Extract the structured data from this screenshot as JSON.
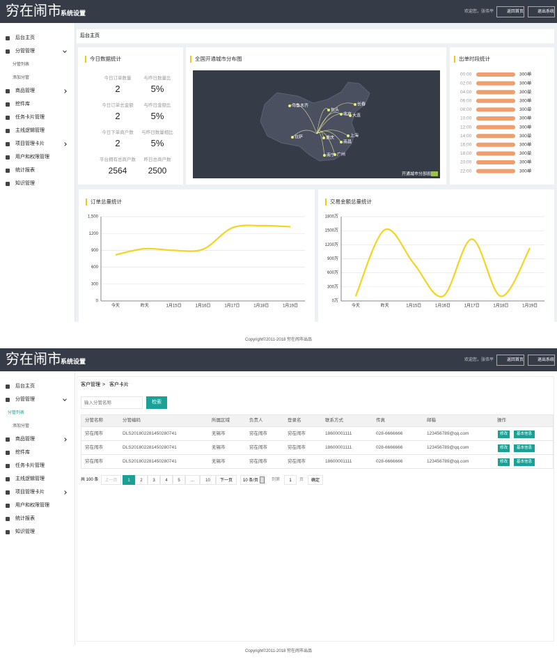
{
  "header": {
    "logo": "穷在闹市",
    "subtitle": "系统设置",
    "welcome": "欢迎您，张伟平",
    "home_button": "返回首页",
    "exit_button": "退出系统"
  },
  "menu": [
    {
      "label": "后台主页"
    },
    {
      "label": "分管管理",
      "children": [
        "分管列表",
        "添加分管"
      ]
    },
    {
      "label": "商品管理"
    },
    {
      "label": "挖件库"
    },
    {
      "label": "任务卡片管理"
    },
    {
      "label": "主线逻辑管理"
    },
    {
      "label": "项目管理卡片"
    },
    {
      "label": "用户和权限管理"
    },
    {
      "label": "统计报表"
    },
    {
      "label": "知识管理"
    }
  ],
  "dashboard": {
    "breadcrumb": "后台主页",
    "stats": {
      "title": "今日数据统计",
      "items": [
        {
          "label": "今日订单数量",
          "value": "2"
        },
        {
          "label": "与昨日数量比",
          "value": "5%"
        },
        {
          "label": "今日订单总金额",
          "value": "2"
        },
        {
          "label": "与昨日金额比",
          "value": "5%"
        },
        {
          "label": "今日下单商户数",
          "value": "2"
        },
        {
          "label": "与昨日数量相比",
          "value": "5%"
        },
        {
          "label": "平台拥有总商户数",
          "value": "2564"
        },
        {
          "label": "昨日总商户数",
          "value": "2500"
        }
      ]
    },
    "map": {
      "title": "全国开通城市分布图",
      "cities": [
        "乌鲁木齐",
        "包头",
        "北京",
        "长春",
        "大连",
        "拉萨",
        "重庆",
        "上海",
        "南昌",
        "南宁",
        "广州"
      ],
      "legend": "开通城市分部图"
    },
    "hours": {
      "type": "bar",
      "title": "出单时段统计",
      "categories": [
        "00:00",
        "02:00",
        "04:00",
        "06:00",
        "08:00",
        "10:00",
        "12:00",
        "14:00",
        "16:00",
        "18:00",
        "20:00",
        "22:00"
      ],
      "values": [
        300,
        300,
        300,
        300,
        300,
        300,
        300,
        300,
        300,
        300,
        300,
        300
      ],
      "value_labels": [
        "300单",
        "300单",
        "300单",
        "300单",
        "300单",
        "300单",
        "300单",
        "300单",
        "300单",
        "300单",
        "300单",
        "300单"
      ]
    },
    "charts": [
      {
        "type": "line",
        "title": "订单总量统计",
        "categories": [
          "今天",
          "昨天",
          "1月15日",
          "1月16日",
          "1月17日",
          "1月18日",
          "1月19日"
        ],
        "values": [
          820,
          930,
          900,
          920,
          1300,
          1340,
          1320
        ],
        "color": "#f5d41e",
        "ylim": [
          0,
          1500
        ],
        "yticks": [
          0,
          300,
          600,
          900,
          1200,
          {
            "value": 1500,
            "label": "1,500"
          }
        ],
        "grid": true
      },
      {
        "type": "line",
        "title": "交易金额总量统计",
        "categories": [
          "今天",
          "昨天",
          "1月15日",
          "1月16日",
          "1月17日",
          "1月18日",
          "1月19日"
        ],
        "values": [
          100,
          1520,
          800,
          100,
          1320,
          100,
          1130
        ],
        "color": "#f5d41e",
        "ylim": [
          0,
          1800
        ],
        "yticks": [
          {
            "value": 0,
            "label": "0万"
          },
          {
            "value": 300,
            "label": "300万"
          },
          {
            "value": 600,
            "label": "600万"
          },
          {
            "value": 900,
            "label": "900万"
          },
          {
            "value": 1200,
            "label": "1200万"
          },
          {
            "value": 1500,
            "label": "1500万"
          },
          {
            "value": 1800,
            "label": "1800万"
          }
        ],
        "grid": true
      }
    ]
  },
  "footer": "Copyright©2011-2018 穷在闹市出品",
  "list_page": {
    "breadcrumb": [
      "客户管理",
      "客户卡片"
    ],
    "separator": ">",
    "search_placeholder": "输入分管名称",
    "search_button": "检索",
    "table": {
      "headers": [
        "分管名称",
        "分管编码",
        "所属区域",
        "负责人",
        "登录名",
        "联系方式",
        "传真",
        "邮箱",
        "操作"
      ],
      "rows": [
        [
          "穷在闹市",
          "DLS201802281450280741",
          "无锡市",
          "穷在闹市",
          "穷在闹市",
          "18600001111",
          "028-6666666",
          "123456789@qq.com",
          [
            "修改",
            "基本信息"
          ]
        ],
        [
          "穷在闹市",
          "DLS201802281450280741",
          "无锡市",
          "穷在闹市",
          "穷在闹市",
          "18600001111",
          "028-6666666",
          "123456789@qq.com",
          [
            "修改",
            "基本信息"
          ]
        ],
        [
          "穷在闹市",
          "DLS201802281450280741",
          "无锡市",
          "穷在闹市",
          "穷在闹市",
          "18600001111",
          "028-6666666",
          "123456789@qq.com",
          [
            "修改",
            "基本信息"
          ]
        ]
      ]
    },
    "pagination": {
      "total": "共 100 条",
      "prev": "上一页",
      "pages": [
        "1",
        "2",
        "3",
        "4",
        "5",
        "...",
        "10"
      ],
      "next": "下一页",
      "page_size": "10 条/页",
      "goto": "到第",
      "goto_value": "1",
      "page_unit": "页",
      "confirm": "确定"
    }
  }
}
